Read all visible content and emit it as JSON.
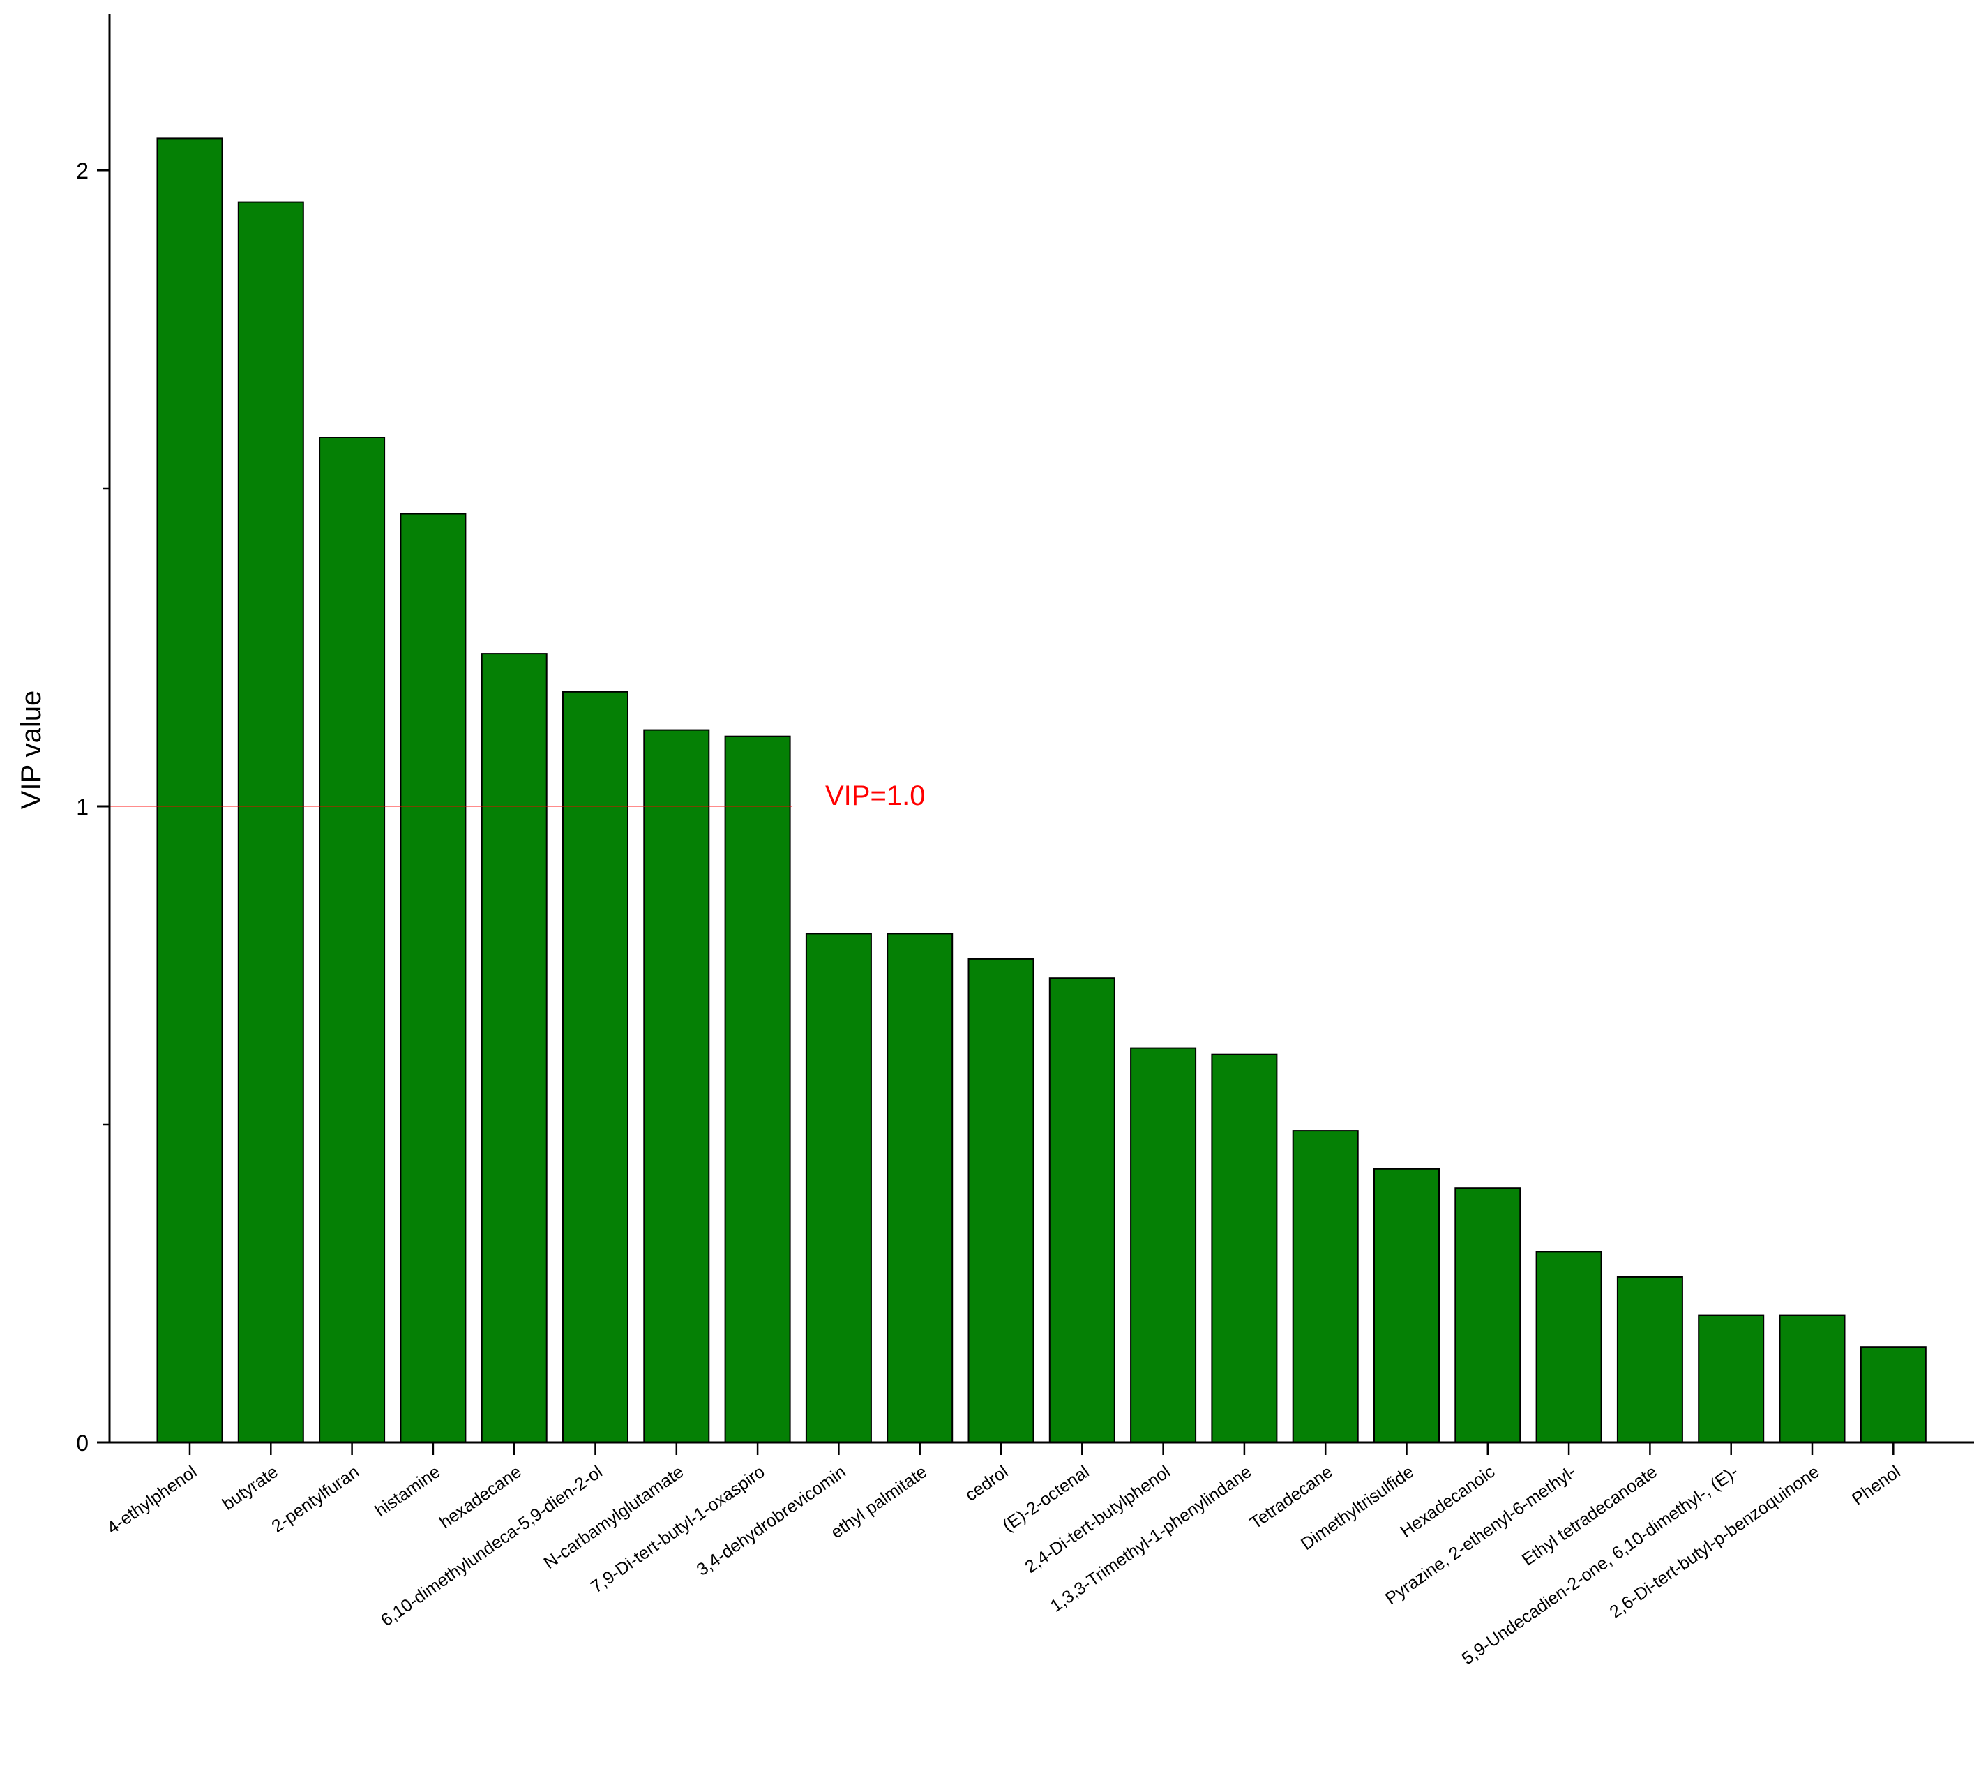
{
  "chart_data": {
    "type": "bar",
    "title": "",
    "xlabel": "",
    "ylabel": "VIP value",
    "ylim": [
      0,
      2.2
    ],
    "yticks": [
      0,
      1,
      2
    ],
    "ytick_labels": [
      "0",
      "1",
      "2"
    ],
    "grid": false,
    "legend": "none",
    "bar_color": "#058005",
    "categories": [
      "4-ethylphenol",
      "butyrate",
      "2-pentylfuran",
      "histamine",
      "hexadecane",
      "6,10-dimethylundeca-5,9-dien-2-ol",
      "N-carbamylglutamate",
      "7,9-Di-tert-butyl-1-oxaspiro",
      "3,4-dehydrobrevicomin",
      "ethyl palmitate",
      "cedrol",
      "(E)-2-octenal",
      "2,4-Di-tert-butylphenol",
      "1,3,3-Trimethyl-1-phenylindane",
      "Tetradecane",
      "Dimethyltrisulfide",
      "Hexadecanoic",
      "Pyrazine, 2-ethenyl-6-methyl-",
      "Ethyl tetradecanoate",
      "5,9-Undecadien-2-one, 6,10-dimethyl-, (E)-",
      "2,6-Di-tert-butyl-p-benzoquinone",
      "Phenol"
    ],
    "values": [
      2.05,
      1.95,
      1.58,
      1.46,
      1.24,
      1.18,
      1.12,
      1.11,
      0.8,
      0.8,
      0.76,
      0.73,
      0.62,
      0.61,
      0.49,
      0.43,
      0.4,
      0.3,
      0.26,
      0.2,
      0.2,
      0.15
    ],
    "reference_line": {
      "value": 1.0,
      "label": "VIP=1.0",
      "color": "#ff0000"
    }
  }
}
